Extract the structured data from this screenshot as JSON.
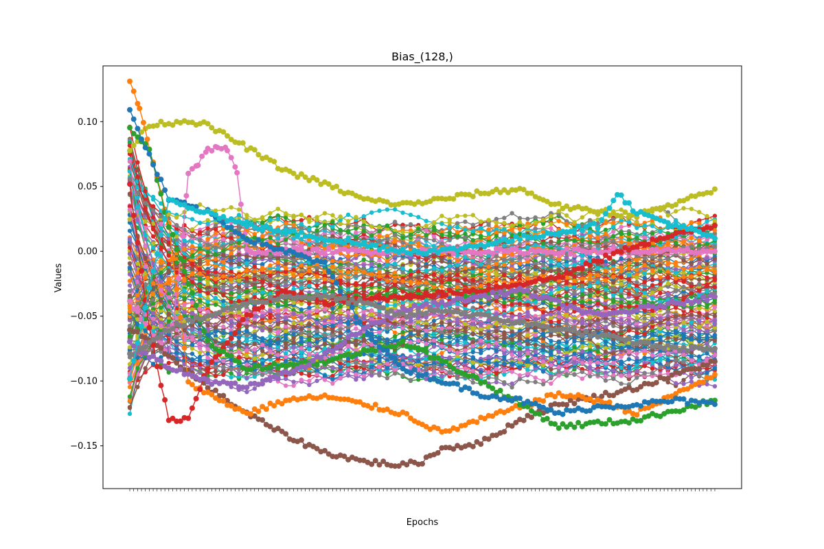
{
  "chart_data": {
    "type": "line",
    "title": "Bias_(128,)",
    "xlabel": "Epochs",
    "ylabel": "Values",
    "xlim": [
      0,
      300
    ],
    "ylim": [
      -0.183,
      0.143
    ],
    "yticks": [
      0.1,
      0.05,
      0.0,
      -0.05,
      -0.1,
      -0.15
    ],
    "ytick_labels": [
      "0.10",
      "0.05",
      "0.00",
      "−0.05",
      "−0.10",
      "−0.15"
    ],
    "grid": false,
    "legend": "none",
    "markers": "circle",
    "series_count": 128,
    "palette": [
      "#1f77b4",
      "#ff7f0e",
      "#2ca02c",
      "#d62728",
      "#9467bd",
      "#8c564b",
      "#e377c2",
      "#7f7f7f",
      "#bcbd22",
      "#17becf"
    ],
    "representative_series": [
      {
        "color": "#bcbd22",
        "x": [
          0,
          10,
          20,
          30,
          40,
          60,
          80,
          100,
          120,
          140,
          160,
          180,
          200,
          220,
          240,
          260,
          280,
          300
        ],
        "y": [
          0.078,
          0.098,
          0.099,
          0.101,
          0.097,
          0.08,
          0.062,
          0.052,
          0.04,
          0.036,
          0.04,
          0.045,
          0.048,
          0.035,
          0.03,
          0.028,
          0.036,
          0.048
        ]
      },
      {
        "color": "#e377c2",
        "x": [
          0,
          10,
          20,
          25,
          30,
          35,
          40,
          45,
          50,
          55,
          60,
          80,
          100,
          140,
          180,
          220,
          260,
          300
        ],
        "y": [
          -0.04,
          -0.06,
          -0.08,
          -0.02,
          0.06,
          0.068,
          0.078,
          0.081,
          0.078,
          0.06,
          0.0,
          0.0,
          0.0,
          0.0,
          0.0,
          0.0,
          0.0,
          0.0
        ]
      },
      {
        "color": "#8c564b",
        "x": [
          0,
          20,
          40,
          60,
          80,
          100,
          120,
          140,
          150,
          160,
          180,
          200,
          220,
          240,
          260,
          280,
          300
        ],
        "y": [
          -0.06,
          -0.08,
          -0.105,
          -0.125,
          -0.142,
          -0.155,
          -0.162,
          -0.165,
          -0.162,
          -0.152,
          -0.148,
          -0.13,
          -0.118,
          -0.112,
          -0.105,
          -0.095,
          -0.085
        ]
      },
      {
        "color": "#ff7f0e",
        "x": [
          0,
          5,
          10,
          20,
          30,
          40,
          60,
          80,
          100,
          120,
          140,
          160,
          180,
          200,
          220,
          240,
          260,
          280,
          300
        ],
        "y": [
          0.13,
          0.11,
          0.08,
          0.02,
          -0.1,
          -0.11,
          -0.125,
          -0.115,
          -0.112,
          -0.118,
          -0.125,
          -0.14,
          -0.13,
          -0.12,
          -0.11,
          -0.115,
          -0.125,
          -0.11,
          -0.095
        ]
      },
      {
        "color": "#d62728",
        "x": [
          0,
          10,
          20,
          30,
          40,
          60,
          80,
          100,
          140,
          180,
          220,
          260,
          300
        ],
        "y": [
          0.05,
          -0.06,
          -0.13,
          -0.13,
          -0.09,
          -0.05,
          -0.03,
          -0.04,
          -0.035,
          -0.03,
          -0.02,
          0.005,
          0.02
        ]
      },
      {
        "color": "#2ca02c",
        "x": [
          0,
          10,
          20,
          40,
          60,
          100,
          140,
          180,
          220,
          260,
          300
        ],
        "y": [
          0.095,
          0.08,
          0.02,
          -0.07,
          -0.09,
          -0.085,
          -0.07,
          -0.1,
          -0.135,
          -0.13,
          -0.115
        ]
      },
      {
        "color": "#1f77b4",
        "x": [
          0,
          20,
          40,
          60,
          80,
          100,
          120,
          140,
          160,
          180,
          200,
          220,
          240,
          260,
          280,
          300
        ],
        "y": [
          0.108,
          0.04,
          0.03,
          0.01,
          0.0,
          -0.01,
          -0.06,
          -0.09,
          -0.1,
          -0.11,
          -0.115,
          -0.125,
          -0.12,
          -0.118,
          -0.115,
          -0.118
        ]
      },
      {
        "color": "#9467bd",
        "x": [
          0,
          20,
          40,
          60,
          80,
          100,
          120,
          140,
          160,
          180,
          200,
          220,
          240,
          260,
          280,
          300
        ],
        "y": [
          -0.07,
          -0.09,
          -0.1,
          -0.105,
          -0.095,
          -0.08,
          -0.06,
          -0.045,
          -0.04,
          -0.035,
          -0.03,
          -0.04,
          -0.05,
          -0.045,
          -0.04,
          -0.035
        ]
      },
      {
        "color": "#7f7f7f",
        "x": [
          0,
          20,
          40,
          60,
          80,
          100,
          120,
          140,
          160,
          180,
          200,
          220,
          240,
          260,
          280,
          300
        ],
        "y": [
          -0.08,
          -0.06,
          -0.05,
          -0.04,
          -0.035,
          -0.035,
          -0.04,
          -0.05,
          -0.045,
          -0.05,
          -0.055,
          -0.06,
          -0.065,
          -0.07,
          -0.075,
          -0.075
        ]
      },
      {
        "color": "#17becf",
        "x": [
          0,
          20,
          40,
          60,
          80,
          100,
          120,
          140,
          160,
          180,
          200,
          220,
          240,
          250,
          260,
          280,
          300
        ],
        "y": [
          -0.1,
          0.04,
          0.03,
          0.02,
          0.015,
          0.01,
          0.005,
          0.0,
          0.0,
          0.005,
          0.01,
          0.015,
          0.02,
          0.045,
          0.03,
          0.02,
          0.01
        ]
      }
    ]
  }
}
